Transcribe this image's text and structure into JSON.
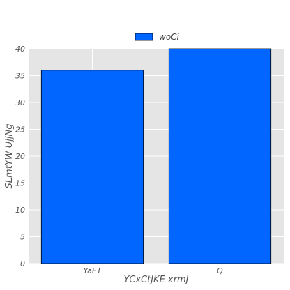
{
  "chart_data": {
    "type": "bar",
    "categories": [
      "YaET",
      "Q"
    ],
    "series": [
      {
        "name": "woCi",
        "values": [
          36,
          40
        ]
      }
    ],
    "xlabel": "YCxCtJKE xrmJ",
    "ylabel": "SLmtYW UjjNg",
    "ylim": [
      0,
      40
    ],
    "yticks": [
      0,
      5,
      10,
      15,
      20,
      25,
      30,
      35,
      40
    ],
    "grid": true,
    "legend": "top-center",
    "colors": {
      "bar": "#0066ff",
      "bar_edge": "#000000",
      "plot_bg": "#e5e5e5",
      "grid": "#ffffff"
    }
  }
}
